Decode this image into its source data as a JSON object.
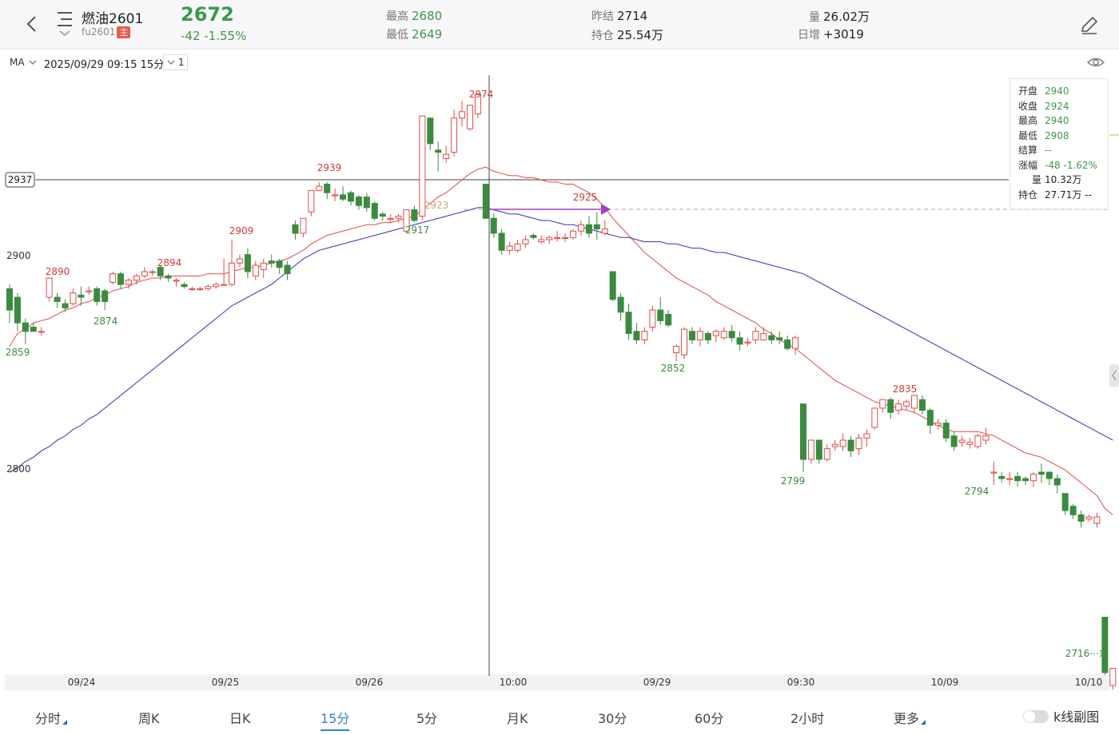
{
  "header": {
    "name": "燃油2601",
    "code": "fu2601",
    "tag": "主",
    "price": "2672",
    "change": "-42  -1.55%",
    "high_label": "最高",
    "high": "2680",
    "low_label": "最低",
    "low": "2649",
    "prev_settle_label": "昨结",
    "prev_settle": "2714",
    "open_interest_label": "持仓",
    "open_interest": "25.54万",
    "volume_label": "量",
    "volume": "26.02万",
    "daily_inc_label": "日增",
    "daily_inc": "+3019"
  },
  "toolbar": {
    "ma_label": "MA",
    "timestamp": "2025/09/29 09:15  15分",
    "period_value": "1"
  },
  "infobox": {
    "open_label": "开盘",
    "open": "2940",
    "close_label": "收盘",
    "close": "2924",
    "high_label": "最高",
    "high": "2940",
    "low_label": "最低",
    "low": "2908",
    "settle_label": "结算",
    "settle": "--",
    "change_label": "涨幅",
    "change": "-48  -1.62%",
    "vol_label": "量",
    "vol": "10.32万",
    "oi_label": "持仓",
    "oi": "27.71万  --"
  },
  "tabs": [
    "分时",
    "周K",
    "日K",
    "15分",
    "5分",
    "月K",
    "30分",
    "60分",
    "2小时",
    "更多"
  ],
  "active_tab": "15分",
  "subchart_toggle_label": "k线副图",
  "colors": {
    "up": "#e04a4a",
    "down": "#3b8b3e",
    "ma_short": "#e04a4a",
    "ma_long": "#3030c0",
    "accent": "#2d7ee0"
  },
  "chart_data": {
    "type": "candlestick",
    "price_ticks": [
      "2900",
      "2800"
    ],
    "crosshair_price": "2937",
    "x_labels": [
      "09/24",
      "09/25",
      "09/26",
      "10:00",
      "09/29",
      "09:30",
      "10/09",
      "10/10"
    ],
    "price_labels": [
      {
        "t": "2890",
        "dir": "up"
      },
      {
        "t": "2874",
        "dir": "down"
      },
      {
        "t": "2859",
        "dir": "down"
      },
      {
        "t": "2894",
        "dir": "up"
      },
      {
        "t": "2909",
        "dir": "up"
      },
      {
        "t": "2939",
        "dir": "up"
      },
      {
        "t": "2917",
        "dir": "down"
      },
      {
        "t": "2923",
        "dir": "ref"
      },
      {
        "t": "2974",
        "dir": "up"
      },
      {
        "t": "2925",
        "dir": "up"
      },
      {
        "t": "2852",
        "dir": "down"
      },
      {
        "t": "2835",
        "dir": "up"
      },
      {
        "t": "2799",
        "dir": "down"
      },
      {
        "t": "2794",
        "dir": "down"
      },
      {
        "t": "2716",
        "dir": "down"
      }
    ],
    "candles": [
      [
        2886,
        2876,
        2888,
        2870
      ],
      [
        2882,
        2870,
        2884,
        2866
      ],
      [
        2870,
        2866,
        2872,
        2860
      ],
      [
        2868,
        2866,
        2870,
        2866
      ],
      [
        2866,
        2866,
        2868,
        2864
      ],
      [
        2882,
        2891,
        2891,
        2880
      ],
      [
        2882,
        2880,
        2884,
        2877
      ],
      [
        2879,
        2877,
        2881,
        2875
      ],
      [
        2879,
        2884,
        2886,
        2878
      ],
      [
        2883,
        2882,
        2887,
        2878
      ],
      [
        2885,
        2885,
        2887,
        2883
      ],
      [
        2886,
        2880,
        2887,
        2878
      ],
      [
        2885,
        2880,
        2886,
        2876
      ],
      [
        2889,
        2893,
        2894,
        2888
      ],
      [
        2893,
        2888,
        2894,
        2886
      ],
      [
        2888,
        2890,
        2891,
        2886
      ],
      [
        2890,
        2892,
        2893,
        2888
      ],
      [
        2892,
        2894,
        2896,
        2891
      ],
      [
        2894,
        2894,
        2895,
        2892
      ],
      [
        2896,
        2892,
        2897,
        2890
      ],
      [
        2892,
        2891,
        2893,
        2889
      ],
      [
        2890,
        2890,
        2891,
        2887
      ],
      [
        2888,
        2887,
        2889,
        2886
      ],
      [
        2886,
        2886,
        2887,
        2885
      ],
      [
        2886,
        2886,
        2887,
        2885
      ],
      [
        2886,
        2887,
        2888,
        2885
      ],
      [
        2887,
        2888,
        2889,
        2886
      ],
      [
        2888,
        2888,
        2900,
        2888
      ],
      [
        2888,
        2898,
        2909,
        2887
      ],
      [
        2898,
        2900,
        2902,
        2896
      ],
      [
        2902,
        2894,
        2905,
        2891
      ],
      [
        2892,
        2897,
        2899,
        2890
      ],
      [
        2895,
        2898,
        2900,
        2891
      ],
      [
        2899,
        2898,
        2902,
        2896
      ],
      [
        2899,
        2896,
        2900,
        2893
      ],
      [
        2897,
        2893,
        2899,
        2890
      ],
      [
        2916,
        2912,
        2918,
        2909
      ],
      [
        2912,
        2919,
        2919,
        2910
      ],
      [
        2922,
        2932,
        2932,
        2920
      ],
      [
        2932,
        2934,
        2936,
        2932
      ],
      [
        2935,
        2931,
        2936,
        2928
      ],
      [
        2930,
        2930,
        2933,
        2927
      ],
      [
        2930,
        2928,
        2934,
        2927
      ],
      [
        2931,
        2927,
        2932,
        2925
      ],
      [
        2929,
        2925,
        2930,
        2923
      ],
      [
        2929,
        2924,
        2931,
        2922
      ],
      [
        2926,
        2919,
        2927,
        2918
      ],
      [
        2921,
        2920,
        2922,
        2918
      ],
      [
        2919,
        2919,
        2921,
        2917
      ],
      [
        2919,
        2920,
        2921,
        2917
      ],
      [
        2913,
        2923,
        2923,
        2912
      ],
      [
        2923,
        2918,
        2925,
        2917
      ],
      [
        2920,
        2967,
        2967,
        2918
      ],
      [
        2966,
        2954,
        2966,
        2951
      ],
      [
        2951,
        2950,
        2955,
        2941
      ],
      [
        2947,
        2949,
        2953,
        2945
      ],
      [
        2950,
        2966,
        2970,
        2948
      ],
      [
        2966,
        2969,
        2974,
        2962
      ],
      [
        2961,
        2972,
        2972,
        2960
      ],
      [
        2968,
        2977,
        2978,
        2966
      ],
      [
        2935,
        2919,
        2935,
        2919
      ],
      [
        2919,
        2912,
        2921,
        2910
      ],
      [
        2912,
        2904,
        2914,
        2902
      ],
      [
        2904,
        2906,
        2908,
        2902
      ],
      [
        2904,
        2907,
        2909,
        2903
      ],
      [
        2907,
        2909,
        2911,
        2905
      ],
      [
        2911,
        2910,
        2912,
        2909
      ],
      [
        2908,
        2909,
        2911,
        2907
      ],
      [
        2909,
        2910,
        2911,
        2907
      ],
      [
        2910,
        2910,
        2913,
        2908
      ],
      [
        2910,
        2910,
        2912,
        2908
      ],
      [
        2910,
        2913,
        2914,
        2909
      ],
      [
        2913,
        2916,
        2918,
        2911
      ],
      [
        2916,
        2912,
        2920,
        2910
      ],
      [
        2916,
        2914,
        2922,
        2909
      ],
      [
        2912,
        2914,
        2918,
        2911
      ],
      [
        2894,
        2881,
        2894,
        2880
      ],
      [
        2882,
        2875,
        2884,
        2871
      ],
      [
        2875,
        2865,
        2879,
        2862
      ],
      [
        2866,
        2862,
        2870,
        2860
      ],
      [
        2862,
        2866,
        2868,
        2860
      ],
      [
        2868,
        2876,
        2878,
        2866
      ],
      [
        2876,
        2871,
        2882,
        2869
      ],
      [
        2874,
        2869,
        2876,
        2868
      ],
      [
        2856,
        2859,
        2860,
        2852
      ],
      [
        2855,
        2867,
        2868,
        2853
      ],
      [
        2866,
        2862,
        2868,
        2860
      ],
      [
        2862,
        2866,
        2868,
        2859
      ],
      [
        2865,
        2862,
        2866,
        2860
      ],
      [
        2864,
        2866,
        2867,
        2861
      ],
      [
        2863,
        2866,
        2868,
        2862
      ],
      [
        2866,
        2863,
        2869,
        2861
      ],
      [
        2863,
        2860,
        2866,
        2857
      ],
      [
        2861,
        2861,
        2863,
        2859
      ],
      [
        2862,
        2866,
        2868,
        2860
      ],
      [
        2862,
        2865,
        2868,
        2862
      ],
      [
        2864,
        2862,
        2866,
        2860
      ],
      [
        2863,
        2862,
        2866,
        2860
      ],
      [
        2862,
        2858,
        2864,
        2857
      ],
      [
        2858,
        2863,
        2864,
        2855
      ],
      [
        2832,
        2806,
        2832,
        2800
      ],
      [
        2806,
        2815,
        2815,
        2804
      ],
      [
        2815,
        2806,
        2815,
        2804
      ],
      [
        2806,
        2811,
        2813,
        2805
      ],
      [
        2812,
        2813,
        2815,
        2810
      ],
      [
        2812,
        2815,
        2818,
        2810
      ],
      [
        2815,
        2810,
        2817,
        2807
      ],
      [
        2811,
        2816,
        2818,
        2808
      ],
      [
        2816,
        2818,
        2820,
        2812
      ],
      [
        2821,
        2830,
        2830,
        2820
      ],
      [
        2830,
        2834,
        2834,
        2828
      ],
      [
        2834,
        2828,
        2835,
        2825
      ],
      [
        2829,
        2832,
        2834,
        2827
      ],
      [
        2831,
        2833,
        2834,
        2829
      ],
      [
        2830,
        2836,
        2836,
        2828
      ],
      [
        2834,
        2829,
        2836,
        2827
      ],
      [
        2829,
        2822,
        2830,
        2818
      ],
      [
        2822,
        2823,
        2825,
        2820
      ],
      [
        2823,
        2816,
        2825,
        2814
      ],
      [
        2817,
        2812,
        2819,
        2810
      ],
      [
        2814,
        2815,
        2817,
        2812
      ],
      [
        2813,
        2814,
        2816,
        2811
      ],
      [
        2812,
        2817,
        2818,
        2811
      ],
      [
        2815,
        2817,
        2821,
        2813
      ],
      [
        2800,
        2800,
        2805,
        2794
      ],
      [
        2798,
        2797,
        2800,
        2795
      ],
      [
        2797,
        2797,
        2800,
        2794
      ],
      [
        2798,
        2796,
        2800,
        2793
      ],
      [
        2797,
        2796,
        2798,
        2794
      ],
      [
        2796,
        2799,
        2800,
        2793
      ],
      [
        2800,
        2799,
        2804,
        2795
      ],
      [
        2800,
        2797,
        2800,
        2794
      ],
      [
        2797,
        2794,
        2799,
        2790
      ],
      [
        2790,
        2782,
        2790,
        2780
      ],
      [
        2784,
        2780,
        2785,
        2778
      ],
      [
        2780,
        2777,
        2782,
        2774
      ],
      [
        2778,
        2779,
        2780,
        2777
      ],
      [
        2776,
        2779,
        2781,
        2774
      ],
      [
        2732,
        2706,
        2732,
        2705
      ],
      [
        2700,
        2708,
        2708,
        2698
      ]
    ],
    "ma_short": [
      2859,
      2865,
      2867,
      2870,
      2871,
      2872,
      2874,
      2876,
      2877,
      2879,
      2880,
      2882,
      2883,
      2885,
      2886,
      2887,
      2889,
      2890,
      2891,
      2891,
      2892,
      2892,
      2892,
      2892,
      2892,
      2893,
      2893,
      2893,
      2894,
      2895,
      2896,
      2896,
      2897,
      2898,
      2899,
      2900,
      2902,
      2904,
      2907,
      2909,
      2911,
      2912,
      2913,
      2914,
      2915,
      2916,
      2916,
      2917,
      2917,
      2918,
      2919,
      2920,
      2923,
      2926,
      2929,
      2931,
      2934,
      2937,
      2940,
      2942,
      2943,
      2941,
      2940,
      2939,
      2939,
      2938,
      2938,
      2937,
      2936,
      2936,
      2935,
      2935,
      2933,
      2931,
      2928,
      2924,
      2919,
      2915,
      2911,
      2907,
      2903,
      2900,
      2897,
      2894,
      2891,
      2889,
      2887,
      2885,
      2883,
      2880,
      2878,
      2876,
      2874,
      2872,
      2870,
      2867,
      2865,
      2862,
      2860,
      2858,
      2855,
      2852,
      2849,
      2846,
      2843,
      2841,
      2839,
      2837,
      2835,
      2833,
      2832,
      2831,
      2830,
      2829,
      2828,
      2826,
      2824,
      2822,
      2820,
      2819,
      2819,
      2819,
      2819,
      2818,
      2817,
      2815,
      2813,
      2811,
      2809,
      2808,
      2807,
      2805,
      2803,
      2801,
      2798,
      2795,
      2792,
      2789,
      2783,
      2780
    ],
    "ma_long": [
      2800,
      2802,
      2805,
      2807,
      2810,
      2812,
      2815,
      2817,
      2820,
      2822,
      2825,
      2827,
      2830,
      2833,
      2836,
      2839,
      2842,
      2845,
      2848,
      2851,
      2854,
      2857,
      2860,
      2863,
      2866,
      2869,
      2872,
      2875,
      2878,
      2880,
      2882,
      2884,
      2886,
      2888,
      2891,
      2894,
      2897,
      2900,
      2902,
      2904,
      2905,
      2906,
      2907,
      2908,
      2909,
      2910,
      2911,
      2912,
      2913,
      2914,
      2915,
      2916,
      2917,
      2918,
      2919,
      2920,
      2921,
      2922,
      2923,
      2924,
      2924,
      2923,
      2922,
      2921,
      2921,
      2920,
      2919,
      2918,
      2918,
      2917,
      2916,
      2916,
      2915,
      2914,
      2913,
      2912,
      2911,
      2910,
      2910,
      2909,
      2908,
      2908,
      2908,
      2907,
      2907,
      2906,
      2905,
      2905,
      2904,
      2903,
      2903,
      2902,
      2901,
      2900,
      2899,
      2898,
      2897,
      2896,
      2895,
      2894,
      2893,
      2891,
      2889,
      2887,
      2885,
      2883,
      2881,
      2879,
      2877,
      2875,
      2873,
      2871,
      2869,
      2867,
      2865,
      2863,
      2861,
      2859,
      2857,
      2855,
      2853,
      2851,
      2849,
      2847,
      2845,
      2843,
      2841,
      2839,
      2837,
      2835,
      2833,
      2831,
      2829,
      2827,
      2825,
      2823,
      2821,
      2819,
      2817,
      2815
    ]
  }
}
